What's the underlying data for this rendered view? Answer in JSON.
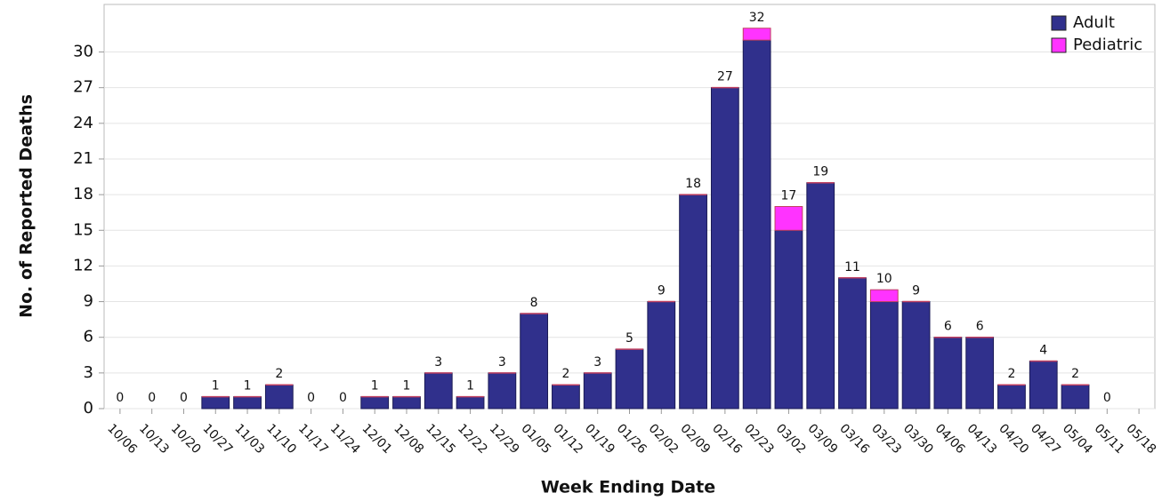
{
  "chart_data": {
    "type": "stacked_bar",
    "x_label": "Week Ending Date",
    "y_label": "No. of Reported Deaths",
    "categories": [
      "10/06",
      "10/13",
      "10/20",
      "10/27",
      "11/03",
      "11/10",
      "11/17",
      "11/24",
      "12/01",
      "12/08",
      "12/15",
      "12/22",
      "12/29",
      "01/05",
      "01/12",
      "01/19",
      "01/26",
      "02/02",
      "02/09",
      "02/16",
      "02/23",
      "03/02",
      "03/09",
      "03/16",
      "03/23",
      "03/30",
      "04/06",
      "04/13",
      "04/20",
      "04/27",
      "05/04",
      "05/11",
      "05/18"
    ],
    "series": [
      {
        "name": "Adult",
        "color": "#30308c",
        "values": [
          0,
          0,
          0,
          1,
          1,
          2,
          0,
          0,
          1,
          1,
          3,
          1,
          3,
          8,
          2,
          3,
          5,
          9,
          18,
          27,
          31,
          15,
          19,
          11,
          9,
          9,
          6,
          6,
          2,
          4,
          2,
          0,
          null
        ]
      },
      {
        "name": "Pediatric",
        "color": "#ff33ff",
        "values": [
          0,
          0,
          0,
          0,
          0,
          0,
          0,
          0,
          0,
          0,
          0,
          0,
          0,
          0,
          0,
          0,
          0,
          0,
          0,
          0,
          1,
          2,
          0,
          0,
          1,
          0,
          0,
          0,
          0,
          0,
          0,
          0,
          null
        ]
      }
    ],
    "totals": [
      0,
      0,
      0,
      1,
      1,
      2,
      0,
      0,
      1,
      1,
      3,
      1,
      3,
      8,
      2,
      3,
      5,
      9,
      18,
      27,
      32,
      17,
      19,
      11,
      10,
      9,
      6,
      6,
      2,
      4,
      2,
      0,
      null
    ],
    "ylim": [
      0,
      34
    ],
    "yticks": [
      0,
      3,
      6,
      9,
      12,
      15,
      18,
      21,
      24,
      27,
      30
    ],
    "grid": true,
    "legend": "top-right"
  }
}
